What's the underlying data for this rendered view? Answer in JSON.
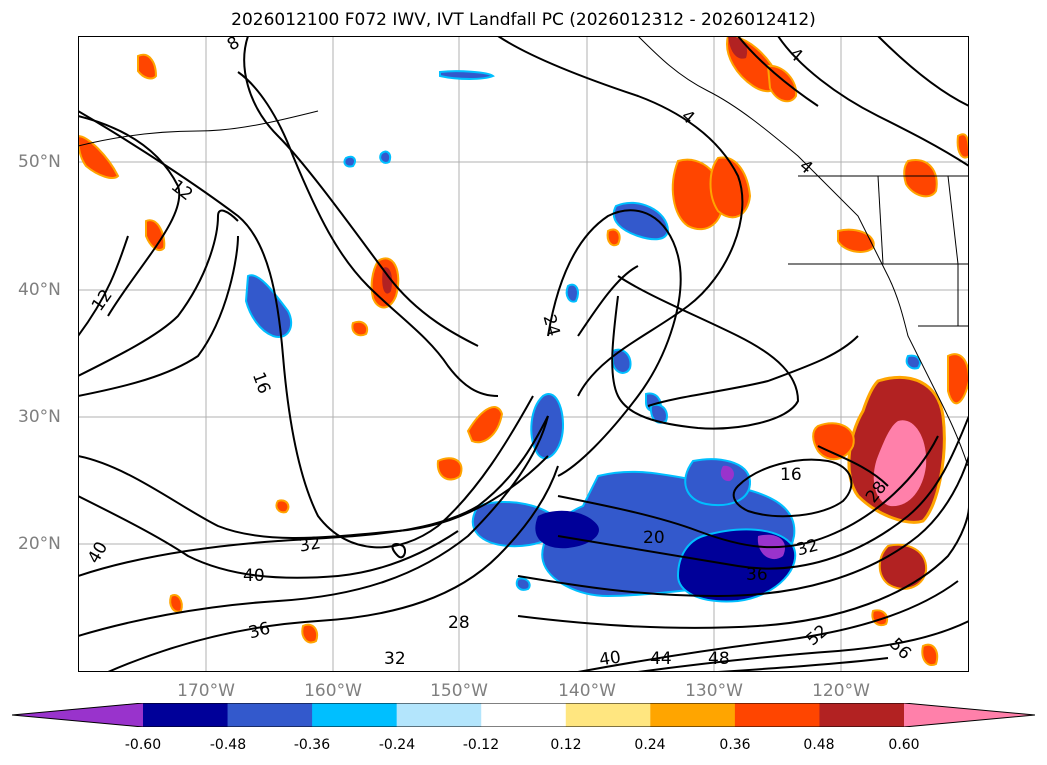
{
  "title": "2026012100 F072 IWV, IVT Landfall PC (2026012312 - 2026012412)",
  "latitude_labels": [
    "50°N",
    "40°N",
    "30°N",
    "20°N"
  ],
  "longitude_labels": [
    "170°W",
    "160°W",
    "150°W",
    "140°W",
    "130°W",
    "120°W"
  ],
  "contour_labels": [
    "12",
    "12",
    "16",
    "24",
    "16",
    "28",
    "20",
    "32",
    "32",
    "36",
    "40",
    "40",
    "28",
    "32",
    "36",
    "40",
    "44",
    "48",
    "52",
    "56",
    "4",
    "4",
    "4",
    "8"
  ],
  "colorbar": {
    "ticks": [
      "-0.60",
      "-0.48",
      "-0.36",
      "-0.24",
      "-0.12",
      "0.12",
      "0.24",
      "0.36",
      "0.48",
      "0.60"
    ],
    "colors": [
      "#9933cc",
      "#000099",
      "#3359cc",
      "#00bfff",
      "#b3e5fc",
      "#ffffff",
      "#ffe680",
      "#ffa500",
      "#ff4500",
      "#b22222",
      "#ff80aa"
    ]
  }
}
